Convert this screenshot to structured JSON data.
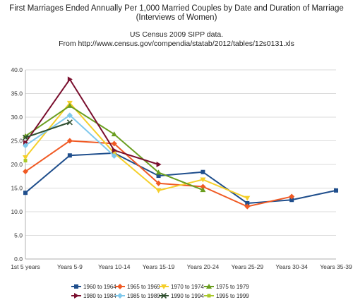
{
  "title_line1": "First Marriages Ended Annually Per 1,000 Married Couples by Date and Duration of Marriage",
  "title_line2": "(Interviews of Women)",
  "subtitle_line1": "US Census 2009 SIPP data.",
  "subtitle_line2": "From http://www.census.gov/compendia/statab/2012/tables/12s0131.xls",
  "chart_data": {
    "type": "line",
    "categories": [
      "1st 5 years",
      "Years 5-9",
      "Years 10-14",
      "Years 15-19",
      "Years 20-24",
      "Years 25-29",
      "Years 30-34",
      "Years 35-39"
    ],
    "ylim": [
      0,
      40
    ],
    "yticks": [
      "0.0",
      "5.0",
      "10.0",
      "15.0",
      "20.0",
      "25.0",
      "30.0",
      "35.0",
      "40.0"
    ],
    "grid": true,
    "legend_position": "bottom",
    "series": [
      {
        "name": "1960 to 1964",
        "color": "#1f4e8c",
        "marker": "square",
        "values": [
          14.0,
          21.9,
          22.4,
          17.6,
          18.4,
          11.8,
          12.5,
          14.5
        ]
      },
      {
        "name": "1965 to 1969",
        "color": "#f05a24",
        "marker": "diamond",
        "values": [
          18.5,
          25.0,
          24.4,
          16.0,
          15.3,
          11.1,
          13.2,
          null
        ]
      },
      {
        "name": "1970 to 1974",
        "color": "#f5cf2a",
        "marker": "triangle-down",
        "values": [
          21.5,
          33.0,
          22.4,
          14.5,
          16.8,
          12.9,
          null,
          null
        ]
      },
      {
        "name": "1975 to 1979",
        "color": "#6a9e1f",
        "marker": "triangle-up",
        "values": [
          26.0,
          32.4,
          26.4,
          18.3,
          14.6,
          null,
          null,
          null
        ]
      },
      {
        "name": "1980 to 1984",
        "color": "#7a0f2e",
        "marker": "triangle-right",
        "values": [
          24.6,
          38.0,
          23.0,
          20.0,
          null,
          null,
          null,
          null
        ]
      },
      {
        "name": "1985 to 1989",
        "color": "#7fc8ec",
        "marker": "diamond",
        "values": [
          24.0,
          30.4,
          21.8,
          null,
          null,
          null,
          null,
          null
        ]
      },
      {
        "name": "1990 to 1994",
        "color": "#2f4f2f",
        "marker": "x",
        "values": [
          25.7,
          28.9,
          null,
          null,
          null,
          null,
          null,
          null
        ]
      },
      {
        "name": "1995 to 1999",
        "color": "#a9c92a",
        "marker": "square-small",
        "values": [
          20.8,
          null,
          null,
          null,
          null,
          null,
          null,
          null
        ]
      }
    ]
  }
}
